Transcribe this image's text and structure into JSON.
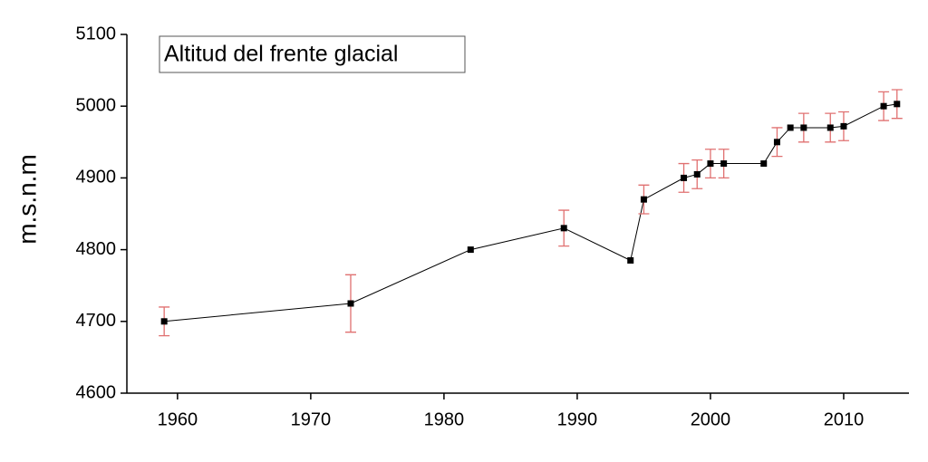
{
  "chart_data": {
    "type": "line",
    "title": "Altitud del frente glacial",
    "y_label": "m.s.n.m",
    "x": [
      1959,
      1973,
      1982,
      1989,
      1994,
      1995,
      1998,
      1999,
      2000,
      2001,
      2004,
      2005,
      2006,
      2007,
      2009,
      2010,
      2013,
      2014
    ],
    "values": [
      4700,
      4725,
      4800,
      4830,
      4785,
      4870,
      4900,
      4905,
      4920,
      4920,
      4920,
      4950,
      4970,
      4970,
      4970,
      4972,
      5000,
      5003
    ],
    "errors": [
      20,
      40,
      null,
      25,
      null,
      20,
      20,
      20,
      20,
      20,
      null,
      20,
      null,
      20,
      20,
      20,
      20,
      20
    ],
    "color": "#000000",
    "error_color": "#e07070",
    "xlim": [
      1956.2,
      2014.9
    ],
    "xticks": [
      1960,
      1970,
      1980,
      1990,
      2000,
      2010
    ],
    "ylim": [
      4600,
      5100
    ],
    "yticks": [
      4600,
      4700,
      4800,
      4900,
      5000,
      5100
    ]
  }
}
